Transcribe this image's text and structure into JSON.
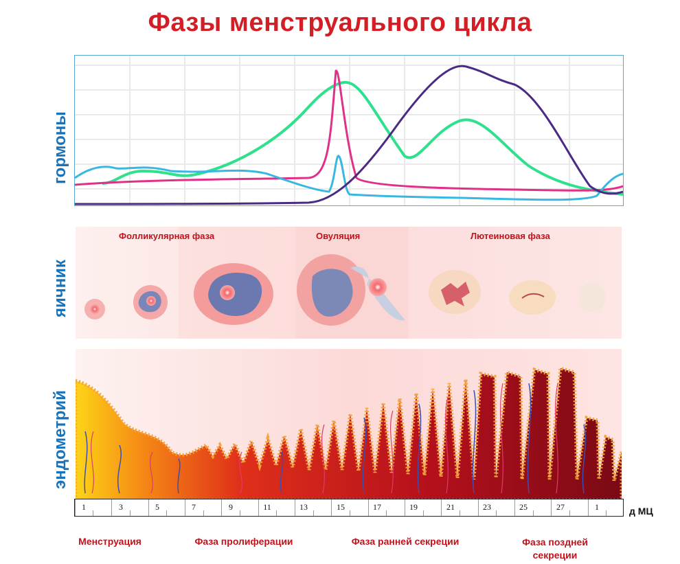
{
  "title": "Фазы менструального цикла",
  "rows": {
    "hormones": "гормоны",
    "ovary": "яичник",
    "endometrium": "эндометрий"
  },
  "ovary_phases": [
    "Фолликулярная фаза",
    "Овуляция",
    "Лютеиновая фаза"
  ],
  "days": [
    "1",
    "3",
    "5",
    "7",
    "9",
    "11",
    "13",
    "15",
    "17",
    "19",
    "21",
    "23",
    "25",
    "27",
    "1"
  ],
  "axis_unit": "д МЦ",
  "endometrium_phases": [
    "Менструация",
    "Фаза пролиферации",
    "Фаза ранней секреции",
    "Фаза поздней секреции"
  ],
  "colors": {
    "title": "#d21e24",
    "labels": "#1a73b8",
    "phase_text": "#c0121c",
    "estrogen": "#2fe08c",
    "lh": "#e0308a",
    "fsh": "#38b8e0",
    "progesterone": "#4a2a82"
  }
}
